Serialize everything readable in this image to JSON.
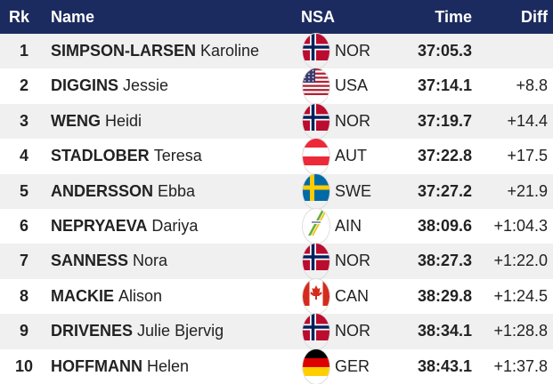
{
  "table": {
    "headers": [
      "Rk",
      "Name",
      "NSA",
      "Time",
      "Diff"
    ],
    "rows": [
      {
        "rank": 1,
        "surname": "SIMPSON-LARSEN",
        "given": "Karoline",
        "nsa": "NOR",
        "time": "37:05.3"
      },
      {
        "rank": 2,
        "surname": "DIGGINS",
        "given": "Jessie",
        "nsa": "USA",
        "time": "37:14.1",
        "diff": "+8.8"
      },
      {
        "rank": 3,
        "surname": "WENG",
        "given": "Heidi",
        "nsa": "NOR",
        "time": "37:19.7",
        "diff": "+14.4"
      },
      {
        "rank": 4,
        "surname": "STADLOBER",
        "given": "Teresa",
        "nsa": "AUT",
        "time": "37:22.8",
        "diff": "+17.5"
      },
      {
        "rank": 5,
        "surname": "ANDERSSON",
        "given": "Ebba",
        "nsa": "SWE",
        "time": "37:27.2",
        "diff": "+21.9"
      },
      {
        "rank": 6,
        "surname": "NEPRYAEVA",
        "given": "Dariya",
        "nsa": "AIN",
        "time": "38:09.6",
        "diff": "+1:04.3"
      },
      {
        "rank": 7,
        "surname": "SANNESS",
        "given": "Nora",
        "nsa": "NOR",
        "time": "38:27.3",
        "diff": "+1:22.0"
      },
      {
        "rank": 8,
        "surname": "MACKIE",
        "given": "Alison",
        "nsa": "CAN",
        "time": "38:29.8",
        "diff": "+1:24.5"
      },
      {
        "rank": 9,
        "surname": "DRIVENES",
        "given": "Julie Bjervig",
        "nsa": "NOR",
        "time": "38:34.1",
        "diff": "+1:28.8"
      },
      {
        "rank": 10,
        "surname": "HOFFMANN",
        "given": "Helen",
        "nsa": "GER",
        "time": "38:43.1",
        "diff": "+1:37.8"
      }
    ]
  }
}
